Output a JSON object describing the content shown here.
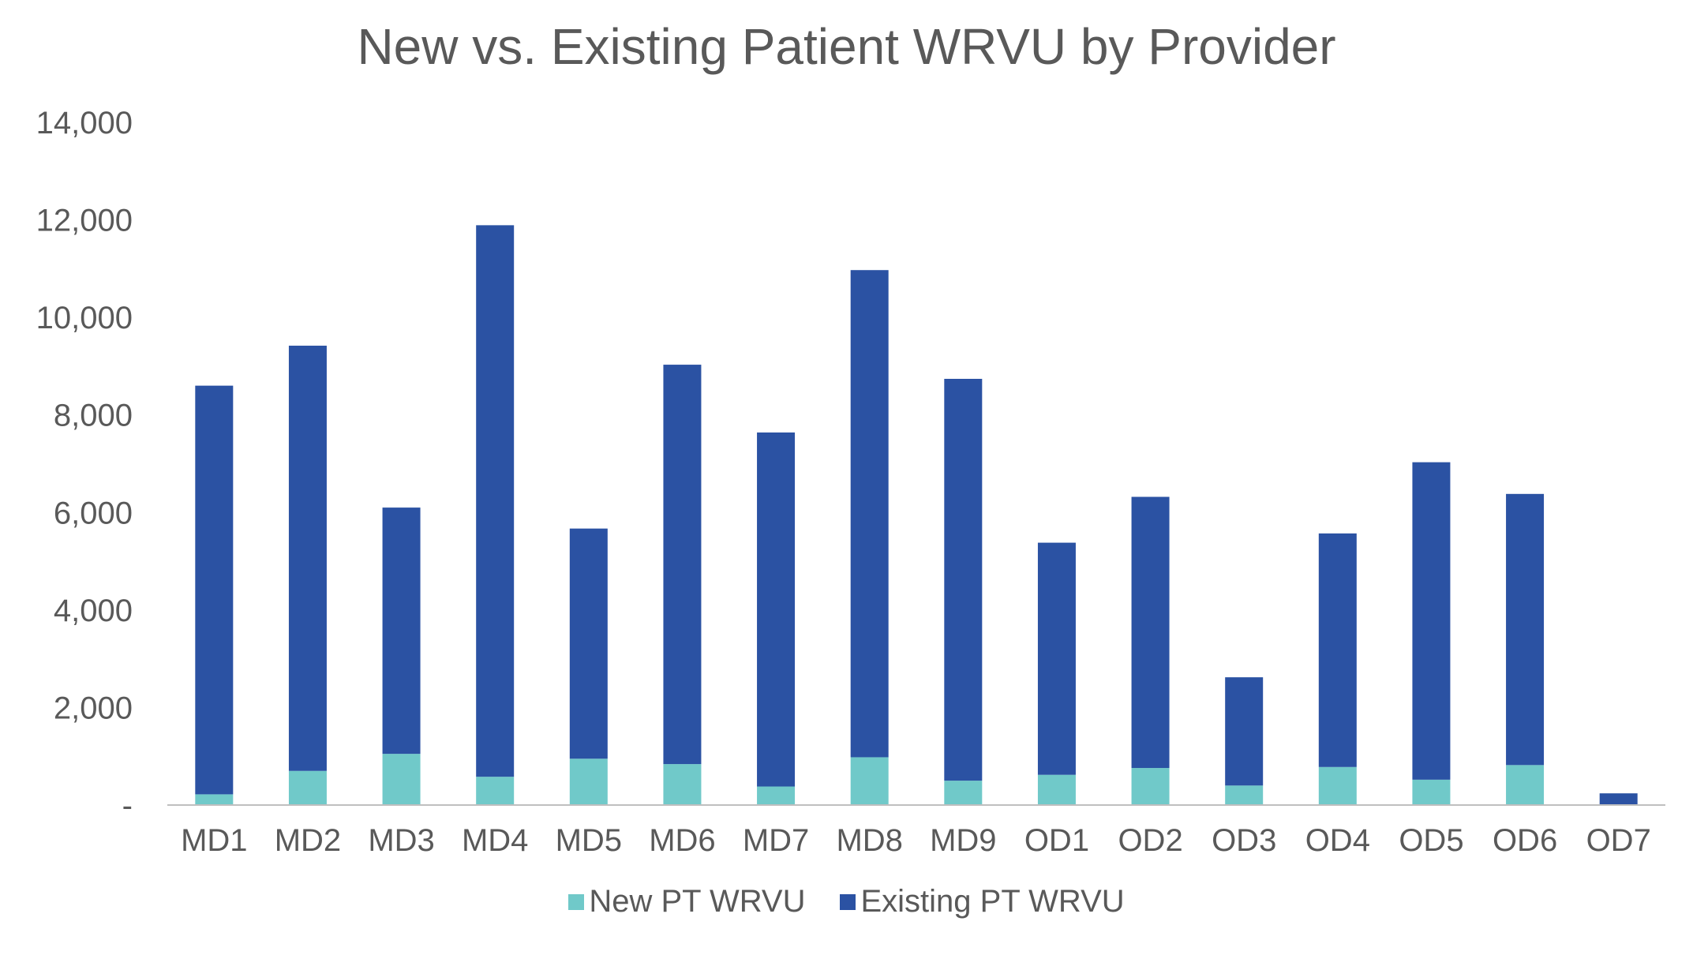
{
  "chart_data": {
    "type": "bar",
    "stacked": true,
    "title": "New vs. Existing Patient WRVU by Provider",
    "xlabel": "",
    "ylabel": "",
    "ylim": [
      0,
      14000
    ],
    "yticks": [
      0,
      2000,
      4000,
      6000,
      8000,
      10000,
      12000,
      14000
    ],
    "ytick_labels": [
      "-",
      "2,000",
      "4,000",
      "6,000",
      "8,000",
      "10,000",
      "12,000",
      "14,000"
    ],
    "grid": false,
    "legend_position": "bottom",
    "categories": [
      "MD1",
      "MD2",
      "MD3",
      "MD4",
      "MD5",
      "MD6",
      "MD7",
      "MD8",
      "MD9",
      "OD1",
      "OD2",
      "OD3",
      "OD4",
      "OD5",
      "OD6",
      "OD7"
    ],
    "series": [
      {
        "name": "New PT WRVU",
        "color": "#70C9C9",
        "values": [
          220,
          700,
          1050,
          580,
          950,
          840,
          380,
          980,
          500,
          620,
          760,
          400,
          780,
          520,
          820,
          0
        ]
      },
      {
        "name": "Existing PT WRVU",
        "color": "#2B52A3",
        "values": [
          8380,
          8720,
          5050,
          11310,
          4720,
          8190,
          7260,
          9990,
          8240,
          4760,
          5560,
          2220,
          4790,
          6510,
          5560,
          240
        ]
      }
    ]
  }
}
